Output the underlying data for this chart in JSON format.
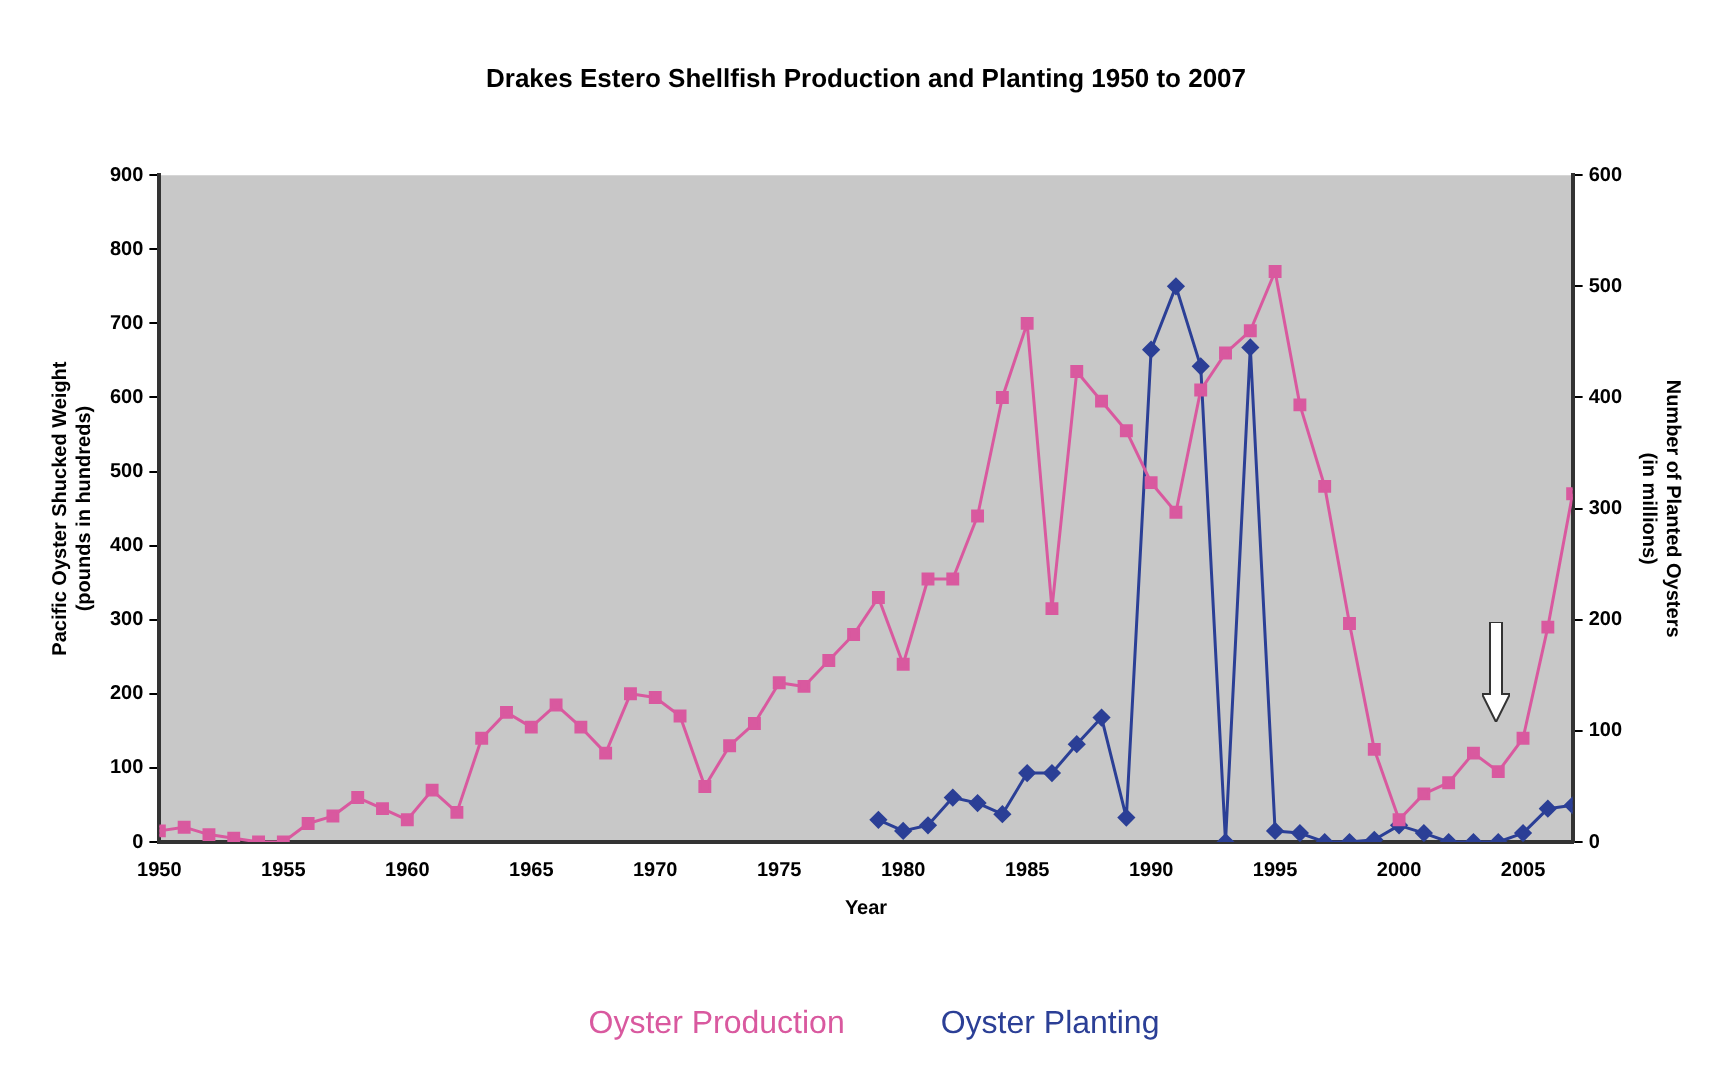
{
  "chart_data": {
    "type": "line",
    "title": "Drakes Estero Shellfish Production and Planting 1950 to 2007",
    "xlabel": "Year",
    "ylabel": "Pacific Oyster Shucked Weight\n(pounds in hundreds)",
    "y2label": "Number of Planted Oysters\n(in millions)",
    "x": [
      1950,
      1951,
      1952,
      1953,
      1954,
      1955,
      1956,
      1957,
      1958,
      1959,
      1960,
      1961,
      1962,
      1963,
      1964,
      1965,
      1966,
      1967,
      1968,
      1969,
      1970,
      1971,
      1972,
      1973,
      1974,
      1975,
      1976,
      1977,
      1978,
      1979,
      1980,
      1981,
      1982,
      1983,
      1984,
      1985,
      1986,
      1987,
      1988,
      1989,
      1990,
      1991,
      1992,
      1993,
      1994,
      1995,
      1996,
      1997,
      1998,
      1999,
      2000,
      2001,
      2002,
      2003,
      2004,
      2005,
      2006,
      2007
    ],
    "series": [
      {
        "name": "Oyster Production",
        "color": "#d9599f",
        "marker": "square",
        "values": [
          15,
          20,
          10,
          5,
          0,
          0,
          25,
          35,
          60,
          45,
          30,
          70,
          40,
          140,
          175,
          155,
          185,
          155,
          120,
          200,
          195,
          170,
          75,
          130,
          160,
          215,
          210,
          245,
          280,
          330,
          240,
          355,
          355,
          440,
          600,
          700,
          315,
          635,
          595,
          555,
          485,
          445,
          610,
          660,
          690,
          770,
          590,
          480,
          295,
          125,
          30,
          65,
          80,
          120,
          95,
          140,
          290,
          470
        ]
      },
      {
        "name": "Oyster Planting",
        "color": "#2b3f96",
        "marker": "diamond",
        "axis": "y2",
        "x": [
          1979,
          1980,
          1981,
          1982,
          1983,
          1984,
          1985,
          1986,
          1987,
          1988,
          1989,
          1990,
          1991,
          1992,
          1993,
          1994,
          1995,
          1996,
          1997,
          1998,
          1999,
          2000,
          2001,
          2002,
          2003,
          2004,
          2005,
          2006,
          2007
        ],
        "values": [
          20,
          10,
          15,
          40,
          35,
          25,
          62,
          62,
          88,
          112,
          22,
          443,
          500,
          428,
          0,
          445,
          10,
          8,
          0,
          0,
          2,
          15,
          8,
          0,
          0,
          0,
          8,
          30,
          33
        ]
      }
    ],
    "xlim": [
      1950,
      2007
    ],
    "xticks": [
      1950,
      1955,
      1960,
      1965,
      1970,
      1975,
      1980,
      1985,
      1990,
      1995,
      2000,
      2005
    ],
    "ylim": [
      0,
      900
    ],
    "yticks": [
      0,
      100,
      200,
      300,
      400,
      500,
      600,
      700,
      800,
      900
    ],
    "y2lim": [
      0,
      600
    ],
    "y2ticks": [
      0,
      100,
      200,
      300,
      400,
      500,
      600
    ],
    "grid": false,
    "legend": "bottom",
    "line_style": "solid"
  }
}
